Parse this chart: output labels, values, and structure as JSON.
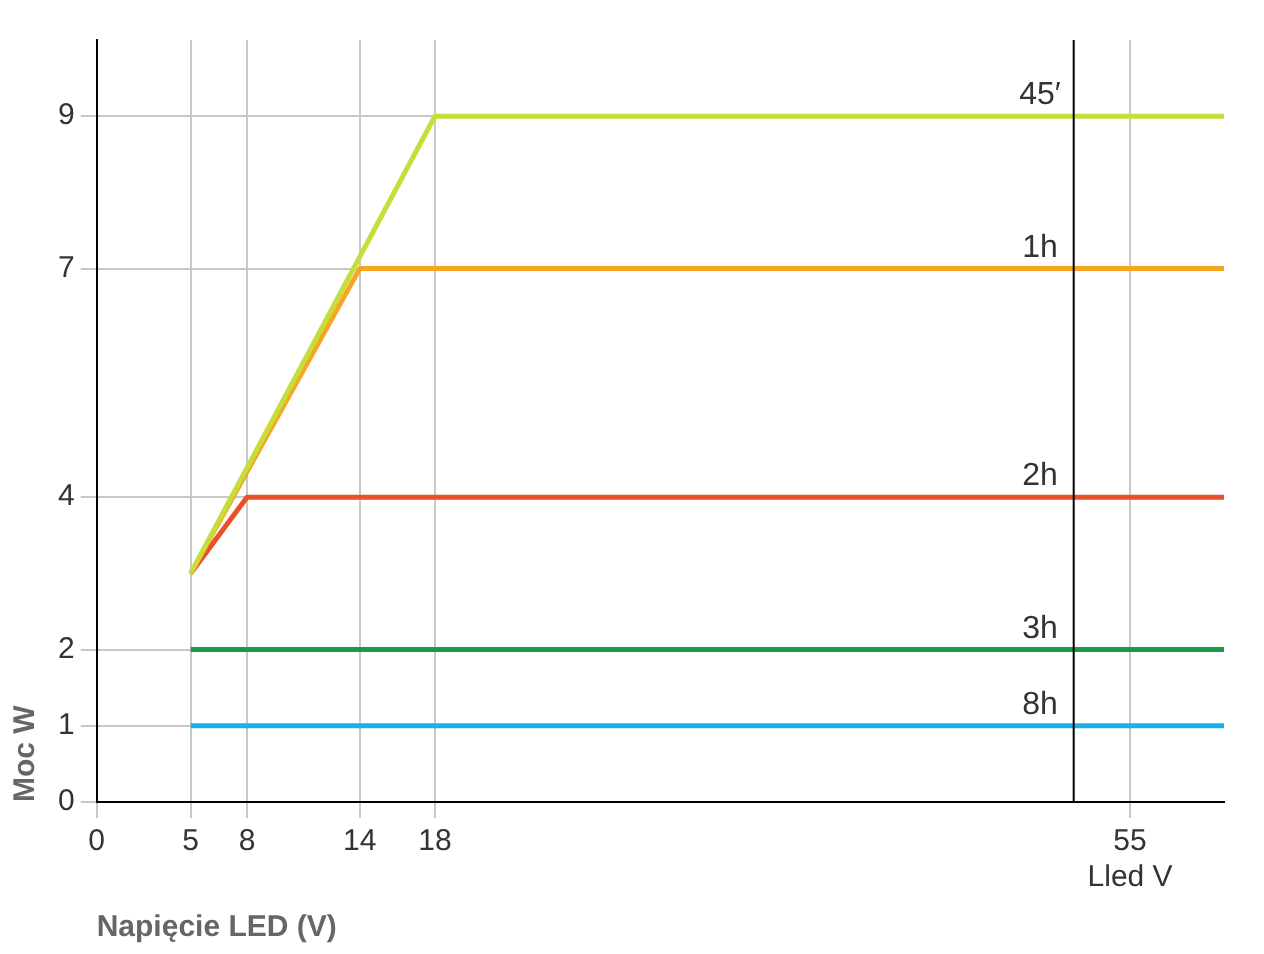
{
  "chart_data": {
    "type": "line",
    "xlabel": "Napięcie LED (V)",
    "ylabel": "Moc W",
    "xlim": [
      0,
      60
    ],
    "xticks": [
      0,
      5,
      8,
      14,
      18,
      {
        "value": 55,
        "label": "55\nLled V"
      }
    ],
    "ylim": [
      0,
      10
    ],
    "yticks": [
      0,
      1,
      2,
      4,
      7,
      9
    ],
    "grid": true,
    "legend": false,
    "marker": "none",
    "line_style": "solid",
    "ref_lines": [
      {
        "axis": "x",
        "value": 52,
        "color": "#000000"
      }
    ],
    "series": [
      {
        "name": "45′",
        "color": "#c8dc3c",
        "x": [
          5,
          18,
          60
        ],
        "values": [
          3,
          9,
          9
        ]
      },
      {
        "name": "1h",
        "color": "#f5a623",
        "x": [
          5,
          14,
          60
        ],
        "values": [
          3,
          7,
          7
        ]
      },
      {
        "name": "2h",
        "color": "#e8502a",
        "x": [
          5,
          8,
          60
        ],
        "values": [
          3,
          4,
          4
        ]
      },
      {
        "name": "3h",
        "color": "#1a9a4a",
        "x": [
          5,
          60
        ],
        "values": [
          2,
          2
        ]
      },
      {
        "name": "8h",
        "color": "#1ab0e8",
        "x": [
          5,
          60
        ],
        "values": [
          1,
          1
        ]
      }
    ]
  }
}
